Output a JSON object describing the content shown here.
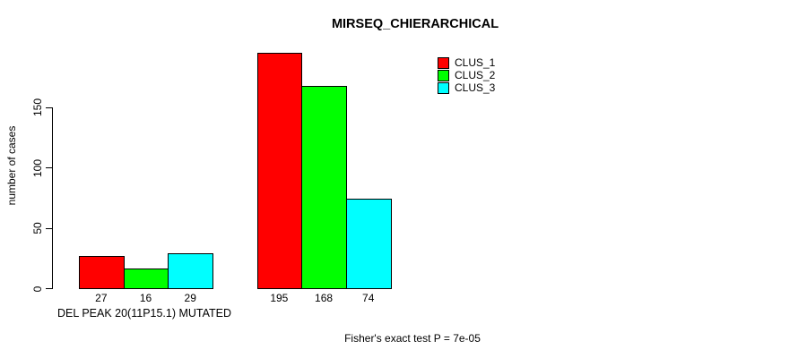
{
  "chart_data": {
    "type": "bar",
    "title": "MIRSEQ_CHIERARCHICAL",
    "ylabel": "number of cases",
    "xlabel": "DEL PEAK 20(11P15.1) MUTATED",
    "footer": "Fisher's exact test P = 7e-05",
    "yticks": [
      0,
      50,
      100,
      150
    ],
    "ylim": [
      0,
      195
    ],
    "grid": false,
    "legend_position": "top-right",
    "bar_value_labels_shown": true,
    "series": [
      {
        "name": "CLUS_1",
        "color": "#FF0000",
        "values": [
          27,
          195
        ]
      },
      {
        "name": "CLUS_2",
        "color": "#00FF00",
        "values": [
          16,
          168
        ]
      },
      {
        "name": "CLUS_3",
        "color": "#00FFFF",
        "values": [
          29,
          74
        ]
      }
    ],
    "groups": [
      {
        "label": "DEL PEAK 20(11P15.1) MUTATED",
        "values": [
          27,
          16,
          29
        ]
      },
      {
        "label": "",
        "values": [
          195,
          168,
          74
        ]
      }
    ]
  }
}
